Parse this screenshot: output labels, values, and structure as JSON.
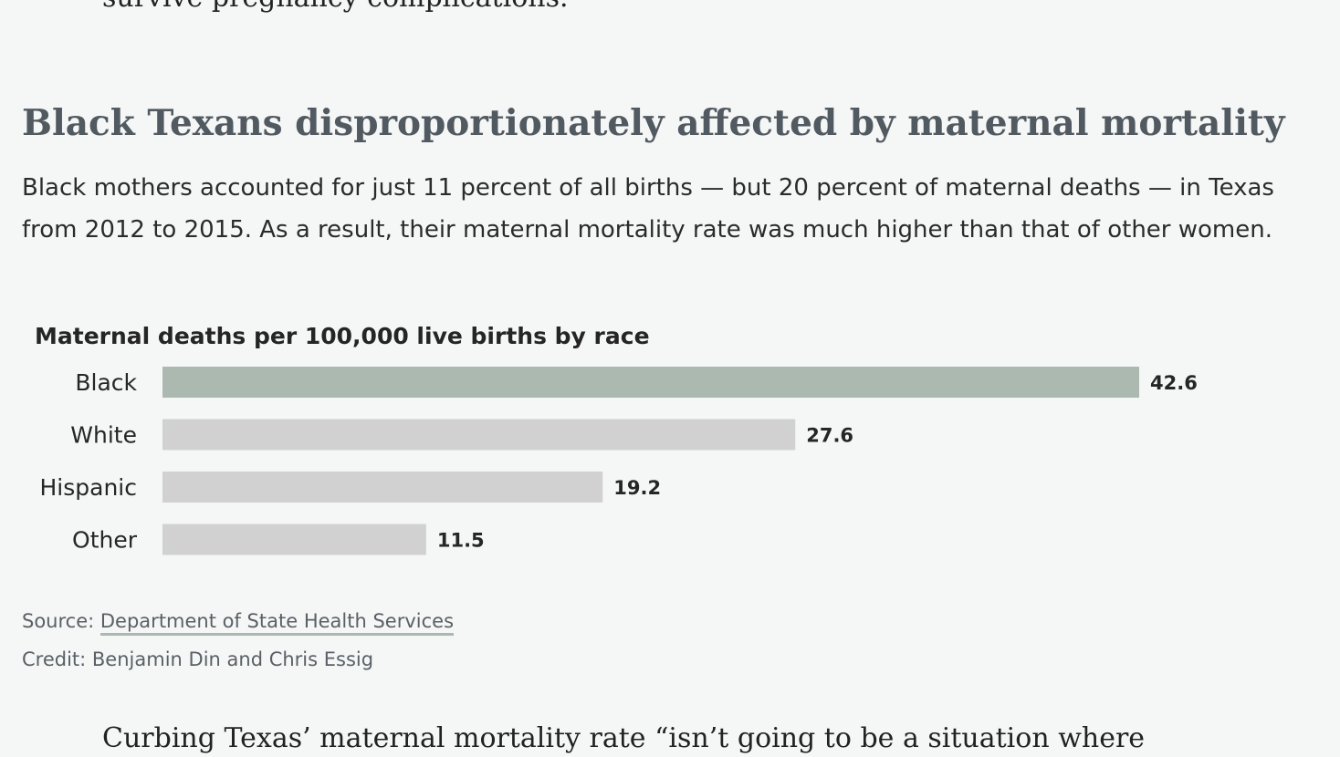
{
  "article": {
    "prev_paragraph_tail": "survive pregnancy complications.",
    "next_paragraph_head": "Curbing Texas’ maternal mortality rate “isn’t going to be a situation where"
  },
  "graphic": {
    "headline": "Black Texans disproportionately affected by maternal mortality",
    "deck": "Black mothers accounted for just 11 percent of all births — but 20 percent of maternal deaths — in Texas from 2012 to 2015. As a result, their maternal mortality rate was much higher than that of other women.",
    "source_label": "Source:",
    "source_link": "Department of State Health Services",
    "credit": "Credit: Benjamin Din and Chris Essig"
  },
  "colors": {
    "highlight_bar": "#abb9b0",
    "default_bar": "#d1d1d1"
  },
  "chart_data": {
    "type": "bar",
    "orientation": "horizontal",
    "title": "Maternal deaths per 100,000 live births by race",
    "categories": [
      "Black",
      "White",
      "Hispanic",
      "Other"
    ],
    "values": [
      42.6,
      27.6,
      19.2,
      11.5
    ],
    "value_labels": [
      "42.6",
      "27.6",
      "19.2",
      "11.5"
    ],
    "highlighted_category": "Black",
    "xlim": [
      0,
      42.6
    ],
    "grid": false,
    "legend": "none"
  }
}
